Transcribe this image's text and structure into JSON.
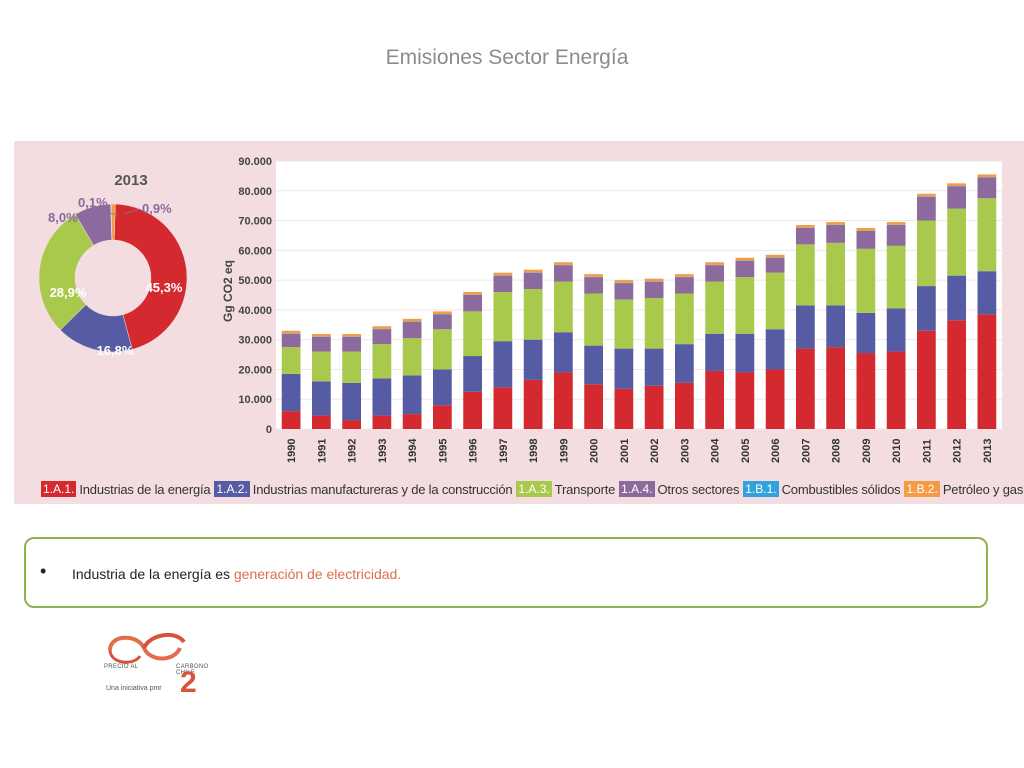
{
  "slide": {
    "title": "Emisiones Sector Energía"
  },
  "chart_data": [
    {
      "type": "pie",
      "variant": "donut",
      "title": "2013",
      "slices": [
        {
          "code": "1.A.1.",
          "value": 45.3,
          "label": "45,3%"
        },
        {
          "code": "1.A.2.",
          "value": 16.8,
          "label": "16,8%"
        },
        {
          "code": "1.A.3.",
          "value": 28.9,
          "label": "28,9%"
        },
        {
          "code": "1.A.4.",
          "value": 8.0,
          "label": "8,0%"
        },
        {
          "code": "1.B.1.",
          "value": 0.1,
          "label": "0,1%"
        },
        {
          "code": "1.B.2.",
          "value": 0.9,
          "label": "0,9%"
        }
      ]
    },
    {
      "type": "bar",
      "stacked": true,
      "ylabel": "Gg CO2 eq",
      "ylim": [
        0,
        90000
      ],
      "yticks": [
        "0",
        "10.000",
        "20.000",
        "30.000",
        "40.000",
        "50.000",
        "60.000",
        "70.000",
        "80.000",
        "90.000"
      ],
      "categories": [
        "1990",
        "1991",
        "1992",
        "1993",
        "1994",
        "1995",
        "1996",
        "1997",
        "1998",
        "1999",
        "2000",
        "2001",
        "2002",
        "2003",
        "2004",
        "2005",
        "2006",
        "2007",
        "2008",
        "2009",
        "2010",
        "2011",
        "2012",
        "2013"
      ],
      "series": [
        {
          "name": "Industrias de la energía",
          "code": "1.A.1.",
          "values": [
            6000,
            4500,
            3000,
            4500,
            5000,
            8000,
            12500,
            14000,
            16500,
            19000,
            15000,
            13500,
            14500,
            15500,
            19500,
            19000,
            20000,
            27000,
            27500,
            25500,
            26000,
            33000,
            36500,
            38500
          ]
        },
        {
          "name": "Industrias manufactureras y de la construcción",
          "code": "1.A.2.",
          "values": [
            12500,
            11500,
            12500,
            12500,
            13000,
            12000,
            12000,
            15500,
            13500,
            13500,
            13000,
            13500,
            12500,
            13000,
            12500,
            13000,
            13500,
            14500,
            14000,
            13500,
            14500,
            15000,
            15000,
            14500
          ]
        },
        {
          "name": "Transporte",
          "code": "1.A.3.",
          "values": [
            9000,
            10000,
            10500,
            11500,
            12500,
            13500,
            15000,
            16500,
            17000,
            17000,
            17500,
            16500,
            17000,
            17000,
            17500,
            19000,
            19000,
            20500,
            21000,
            21500,
            21000,
            22000,
            22500,
            24500
          ]
        },
        {
          "name": "Otros sectores",
          "code": "1.A.4.",
          "values": [
            4500,
            5000,
            5000,
            5000,
            5500,
            5000,
            5500,
            5500,
            5500,
            5500,
            5500,
            5500,
            5500,
            5500,
            5500,
            5500,
            5000,
            5500,
            6000,
            6000,
            7000,
            8000,
            7500,
            7000
          ]
        },
        {
          "name": "Combustibles sólidos",
          "code": "1.B.1.",
          "values": [
            100,
            100,
            100,
            100,
            100,
            100,
            100,
            100,
            100,
            100,
            100,
            100,
            100,
            100,
            100,
            100,
            100,
            100,
            100,
            100,
            100,
            100,
            100,
            100
          ]
        },
        {
          "name": "Petróleo y gas natural",
          "code": "1.B.2.",
          "values": [
            900,
            800,
            800,
            900,
            900,
            900,
            900,
            900,
            900,
            900,
            900,
            900,
            900,
            900,
            900,
            900,
            900,
            900,
            900,
            900,
            900,
            900,
            900,
            900
          ]
        }
      ],
      "colors": [
        "#d42a2f",
        "#565ca4",
        "#a9c94d",
        "#8d6a9d",
        "#31a3dc",
        "#f39c45"
      ]
    }
  ],
  "note": {
    "bullet": "•",
    "text": "Industria de la energía es ",
    "highlight": "generación de electricidad."
  },
  "logo": {
    "left_text": "PRECIO AL",
    "right_text": "CARBONO CHILE",
    "tagline": "Una iniciativa pmr",
    "subscript": "2"
  }
}
